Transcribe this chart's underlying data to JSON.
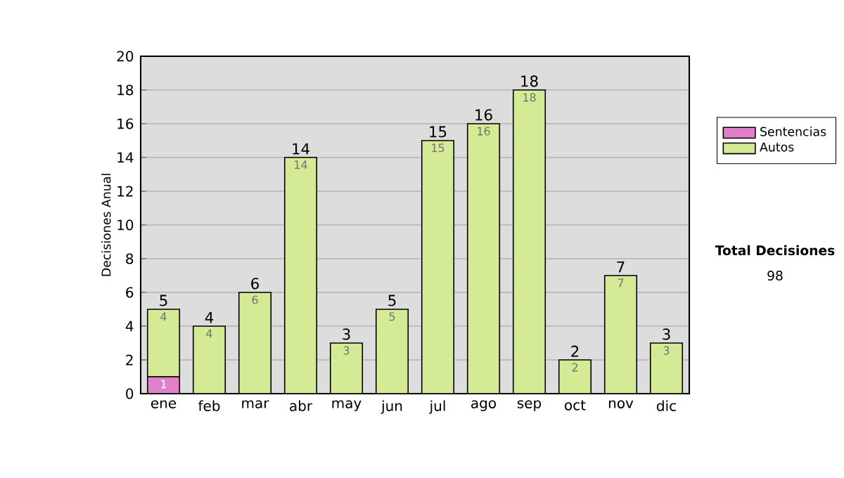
{
  "chart_data": {
    "type": "bar",
    "stacked": true,
    "ylabel": "Decisiones Anual",
    "categories": [
      "ene",
      "feb",
      "mar",
      "abr",
      "may",
      "jun",
      "jul",
      "ago",
      "sep",
      "oct",
      "nov",
      "dic"
    ],
    "series": [
      {
        "name": "Sentencias",
        "color": "#e080c8",
        "values": [
          1,
          0,
          0,
          0,
          0,
          0,
          0,
          0,
          0,
          0,
          0,
          0
        ],
        "value_labels": [
          "1",
          null,
          null,
          null,
          null,
          null,
          null,
          null,
          null,
          null,
          null,
          null
        ]
      },
      {
        "name": "Autos",
        "color": "#d4ea94",
        "values": [
          4,
          4,
          6,
          14,
          3,
          5,
          15,
          16,
          18,
          2,
          7,
          3
        ],
        "value_labels": [
          "4",
          "4",
          "6",
          "14",
          "3",
          "5",
          "15",
          "16",
          "18",
          "2",
          "7",
          "3"
        ]
      }
    ],
    "totals": [
      "5",
      "4",
      "6",
      "14",
      "3",
      "5",
      "15",
      "16",
      "18",
      "2",
      "7",
      "3"
    ],
    "ylim": [
      0,
      20
    ],
    "yticks": [
      0,
      2,
      4,
      6,
      8,
      10,
      12,
      14,
      16,
      18,
      20
    ],
    "grid": "y",
    "legend": "right",
    "annotations": [
      "Total Decisiones",
      "98"
    ]
  }
}
